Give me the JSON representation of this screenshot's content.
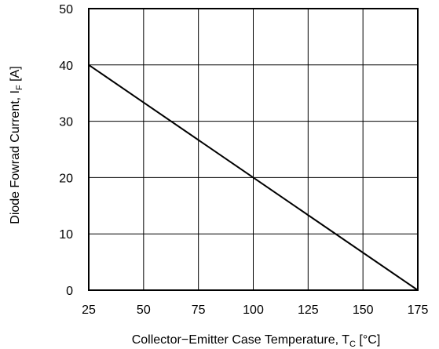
{
  "chart_data": {
    "type": "line",
    "title": "",
    "xlabel": "Collector−Emitter Case Temperature, T",
    "xlabel_sub": "C",
    "xlabel_unit": " [°C]",
    "ylabel": "Diode Fowrad Current, I",
    "ylabel_sub": "F",
    "ylabel_unit": " [A]",
    "xlim": [
      25,
      175
    ],
    "ylim": [
      0,
      50
    ],
    "xticks": [
      25,
      50,
      75,
      100,
      125,
      150,
      175
    ],
    "yticks": [
      0,
      10,
      20,
      30,
      40,
      50
    ],
    "grid": true,
    "series": [
      {
        "x": [
          25,
          175
        ],
        "y": [
          40,
          0
        ]
      }
    ]
  }
}
